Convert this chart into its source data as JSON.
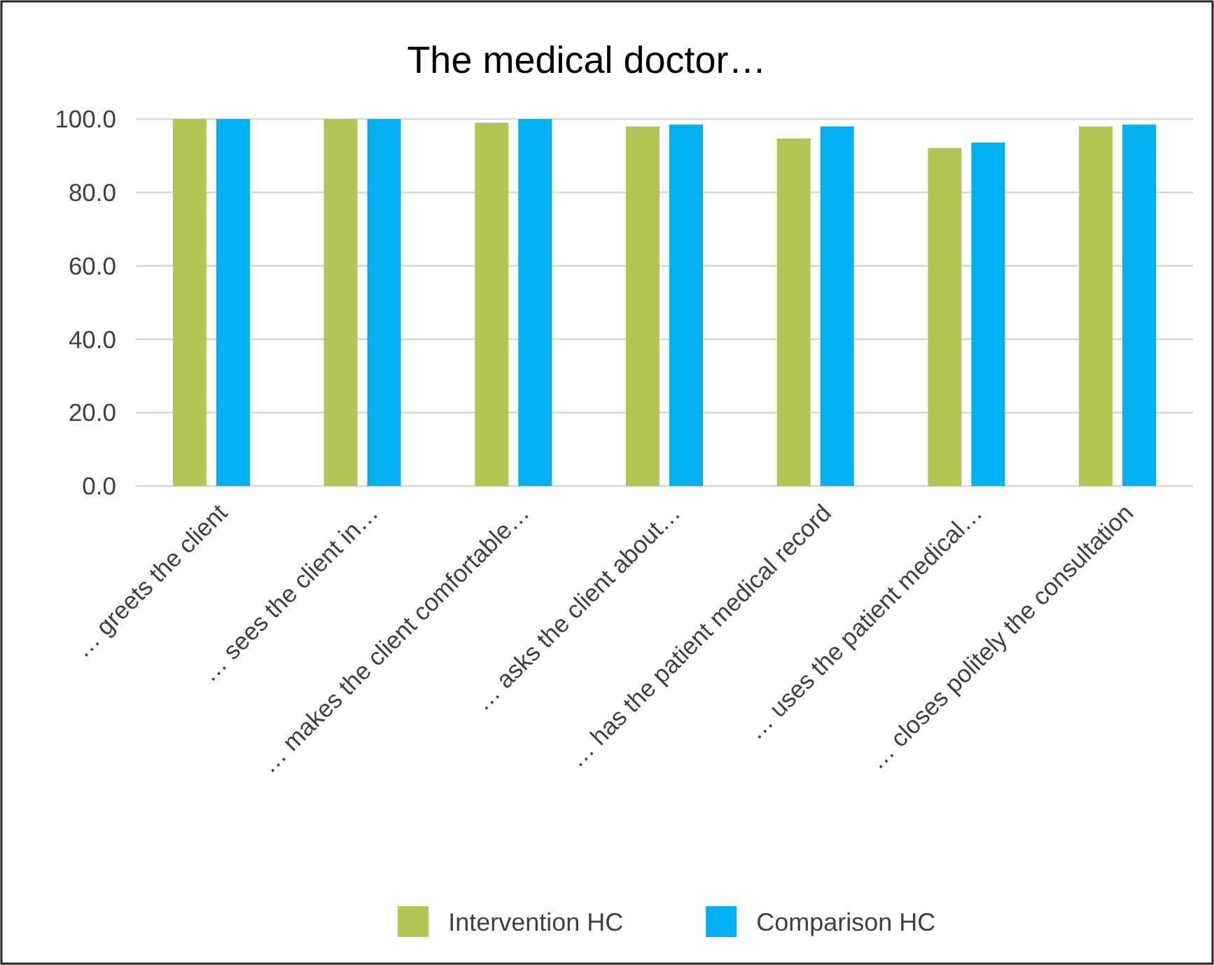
{
  "chart_data": {
    "type": "bar",
    "title": "The medical doctor…",
    "categories": [
      "… greets the client",
      "… sees the client in…",
      "… makes the client comfortable…",
      "… asks the client about…",
      "… has the patient medical record",
      "… uses the patient medical…",
      "… closes politely the consultation"
    ],
    "series": [
      {
        "name": "Intervention HC",
        "color": "#b3c655",
        "values": [
          100,
          100,
          99.0,
          98.0,
          94.7,
          92.1,
          98.0
        ]
      },
      {
        "name": "Comparison HC",
        "color": "#00b0f0",
        "values": [
          100,
          100,
          100,
          98.5,
          98.0,
          93.6,
          98.5
        ]
      }
    ],
    "ylim": [
      0,
      100
    ],
    "yticks": [
      {
        "value": 0,
        "label": "0.0"
      },
      {
        "value": 20,
        "label": "20.0"
      },
      {
        "value": 40,
        "label": "40.0"
      },
      {
        "value": 60,
        "label": "60.0"
      },
      {
        "value": 80,
        "label": "80.0"
      },
      {
        "value": 100,
        "label": "100.0"
      }
    ],
    "grid": "y",
    "legend": "bottom"
  }
}
